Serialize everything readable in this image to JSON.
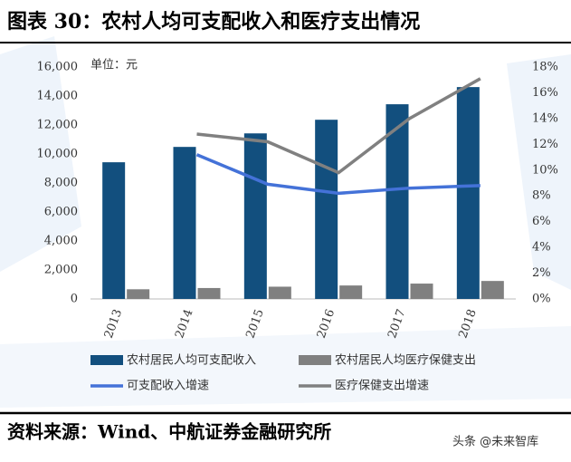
{
  "chart_data": {
    "type": "bar",
    "title": "图表 30：农村人均可支配收入和医疗支出情况",
    "unit": "单位：元",
    "source": "资料来源：Wind、中航证券金融研究所",
    "watermark": "头条 @未来智库",
    "categories": [
      "2013",
      "2014",
      "2015",
      "2016",
      "2017",
      "2018"
    ],
    "series": [
      {
        "name": "农村居民人均可支配收入",
        "type": "bar",
        "color": "#124f7e",
        "values": [
          9430,
          10489,
          11422,
          12363,
          13432,
          14617
        ]
      },
      {
        "name": "农村居民人均医疗保健支出",
        "type": "bar",
        "color": "#808080",
        "values": [
          668,
          754,
          846,
          929,
          1059,
          1240
        ]
      },
      {
        "name": "可支配收入增速",
        "type": "line",
        "axis": "y2",
        "color": "#4472d8",
        "values": [
          null,
          11.2,
          8.9,
          8.2,
          8.6,
          8.8
        ]
      },
      {
        "name": "医疗保健支出增速",
        "type": "line",
        "axis": "y2",
        "color": "#808080",
        "values": [
          null,
          12.8,
          12.2,
          9.8,
          14.0,
          17.1
        ]
      }
    ],
    "ylim": [
      0,
      16000
    ],
    "yticks": [
      0,
      {
        "value": 2000,
        "label": "2,000"
      },
      {
        "value": 4000,
        "label": "4,000"
      },
      {
        "value": 6000,
        "label": "6,000"
      },
      {
        "value": 8000,
        "label": "8,000"
      },
      {
        "value": 10000,
        "label": "10,000"
      },
      {
        "value": 12000,
        "label": "12,000"
      },
      {
        "value": 14000,
        "label": "14,000"
      },
      {
        "value": 16000,
        "label": "16,000"
      }
    ],
    "y2lim": [
      0,
      18
    ],
    "y2ticks": [
      {
        "value": 0,
        "label": "0%"
      },
      {
        "value": 2,
        "label": "2%"
      },
      {
        "value": 4,
        "label": "4%"
      },
      {
        "value": 6,
        "label": "6%"
      },
      {
        "value": 8,
        "label": "8%"
      },
      {
        "value": 10,
        "label": "10%"
      },
      {
        "value": 12,
        "label": "12%"
      },
      {
        "value": 14,
        "label": "14%"
      },
      {
        "value": 16,
        "label": "16%"
      },
      {
        "value": 18,
        "label": "18%"
      }
    ]
  }
}
